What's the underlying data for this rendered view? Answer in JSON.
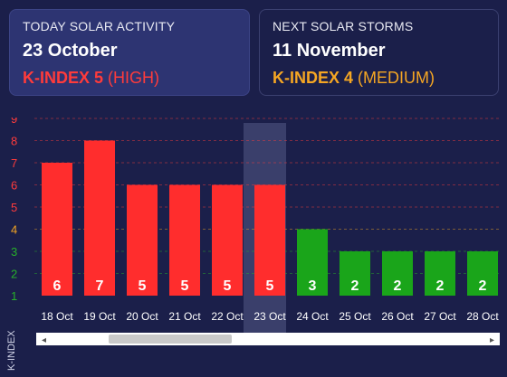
{
  "today": {
    "label": "TODAY SOLAR ACTIVITY",
    "date": "23 October",
    "kindex_label": "K-INDEX 5",
    "level": "(HIGH)"
  },
  "next": {
    "label": "NEXT SOLAR STORMS",
    "date": "11 November",
    "kindex_label": "K-INDEX 4",
    "level": "(MEDIUM)"
  },
  "chart_data": {
    "type": "bar",
    "ylabel": "K-INDEX",
    "ylim": [
      1,
      9
    ],
    "yticks": [
      1,
      2,
      3,
      4,
      5,
      6,
      7,
      8,
      9
    ],
    "categories": [
      "18 Oct",
      "19 Oct",
      "20 Oct",
      "21 Oct",
      "22 Oct",
      "23 Oct",
      "24 Oct",
      "25 Oct",
      "26 Oct",
      "27 Oct",
      "28 Oct"
    ],
    "values": [
      6,
      7,
      5,
      5,
      5,
      5,
      3,
      2,
      2,
      2,
      2
    ],
    "highlighted_category": "23 Oct",
    "grid": true,
    "colors": {
      "high": "#ff2d2d",
      "medium": "#f5a623",
      "low": "#1aa51a",
      "tick_high": "#ff3b3b",
      "tick_medium": "#f5a623",
      "tick_low": "#27b02a",
      "highlight_band": "#3a3f6b"
    }
  },
  "scrollbar": {
    "left_arrow": "◂",
    "right_arrow": "▸"
  }
}
